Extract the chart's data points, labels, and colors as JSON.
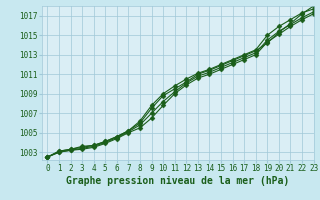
{
  "title": "Graphe pression niveau de la mer (hPa)",
  "background_color": "#c8e8f0",
  "plot_bg_color": "#daeef5",
  "grid_color": "#a0c8d8",
  "line_color": "#1a5e1a",
  "marker_color": "#1a5e1a",
  "xlim": [
    -0.5,
    23
  ],
  "ylim": [
    1002.2,
    1018.0
  ],
  "xticks": [
    0,
    1,
    2,
    3,
    4,
    5,
    6,
    7,
    8,
    9,
    10,
    11,
    12,
    13,
    14,
    15,
    16,
    17,
    18,
    19,
    20,
    21,
    22,
    23
  ],
  "yticks": [
    1003,
    1005,
    1007,
    1009,
    1011,
    1013,
    1015,
    1017
  ],
  "series": [
    [
      1002.5,
      1003.1,
      1003.3,
      1003.6,
      1003.7,
      1004.1,
      1004.6,
      1005.2,
      1006.0,
      1007.5,
      1008.8,
      1009.5,
      1010.2,
      1011.0,
      1011.4,
      1011.9,
      1012.4,
      1012.9,
      1013.4,
      1014.2,
      1015.3,
      1016.2,
      1017.2,
      1018.0
    ],
    [
      1002.5,
      1003.1,
      1003.3,
      1003.5,
      1003.7,
      1004.1,
      1004.6,
      1005.2,
      1006.2,
      1007.8,
      1009.0,
      1009.8,
      1010.5,
      1011.1,
      1011.5,
      1012.0,
      1012.5,
      1013.0,
      1013.5,
      1015.0,
      1015.9,
      1016.6,
      1017.3,
      1017.7
    ],
    [
      1002.5,
      1003.0,
      1003.2,
      1003.4,
      1003.6,
      1004.0,
      1004.5,
      1005.1,
      1005.8,
      1007.0,
      1008.2,
      1009.2,
      1010.1,
      1010.8,
      1011.2,
      1011.7,
      1012.2,
      1012.7,
      1013.2,
      1014.5,
      1015.4,
      1016.1,
      1016.8,
      1017.4
    ],
    [
      1002.5,
      1003.0,
      1003.2,
      1003.3,
      1003.5,
      1003.9,
      1004.4,
      1005.0,
      1005.5,
      1006.5,
      1007.8,
      1009.0,
      1009.9,
      1010.6,
      1011.0,
      1011.5,
      1012.0,
      1012.5,
      1013.0,
      1014.3,
      1015.1,
      1015.9,
      1016.6,
      1017.2
    ]
  ],
  "marker": "D",
  "markersize": 2.5,
  "linewidth": 0.8,
  "title_fontsize": 7,
  "tick_fontsize": 5.5,
  "tick_color": "#1a5e1a",
  "title_color": "#1a5e1a",
  "title_fontweight": "bold"
}
